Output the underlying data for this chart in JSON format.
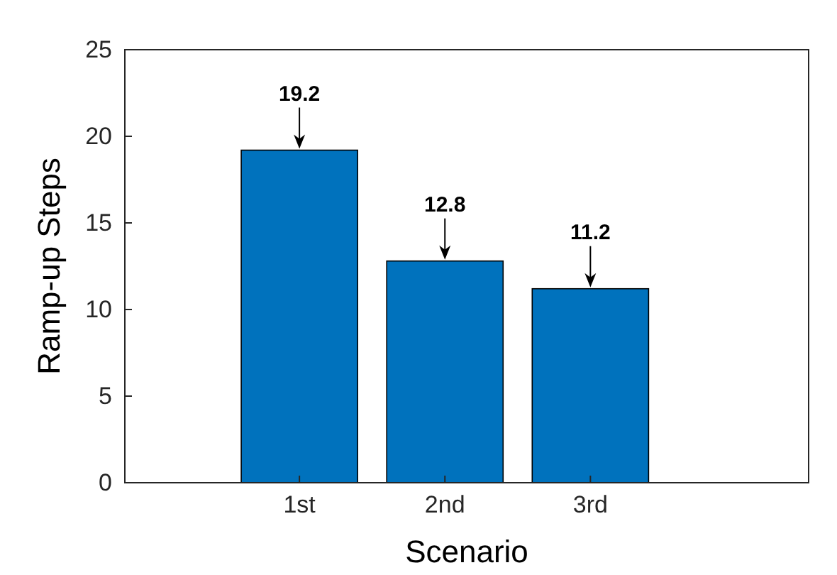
{
  "chart_data": {
    "type": "bar",
    "xlabel": "Scenario",
    "ylabel": "Ramp-up Steps",
    "categories": [
      "1st",
      "2nd",
      "3rd"
    ],
    "values": [
      19.2,
      12.8,
      11.2
    ],
    "color": "#0072bd",
    "ylim": [
      0,
      25
    ],
    "yticks": [
      0,
      5,
      10,
      15,
      20,
      25
    ],
    "data_labels": true,
    "grid": false
  }
}
